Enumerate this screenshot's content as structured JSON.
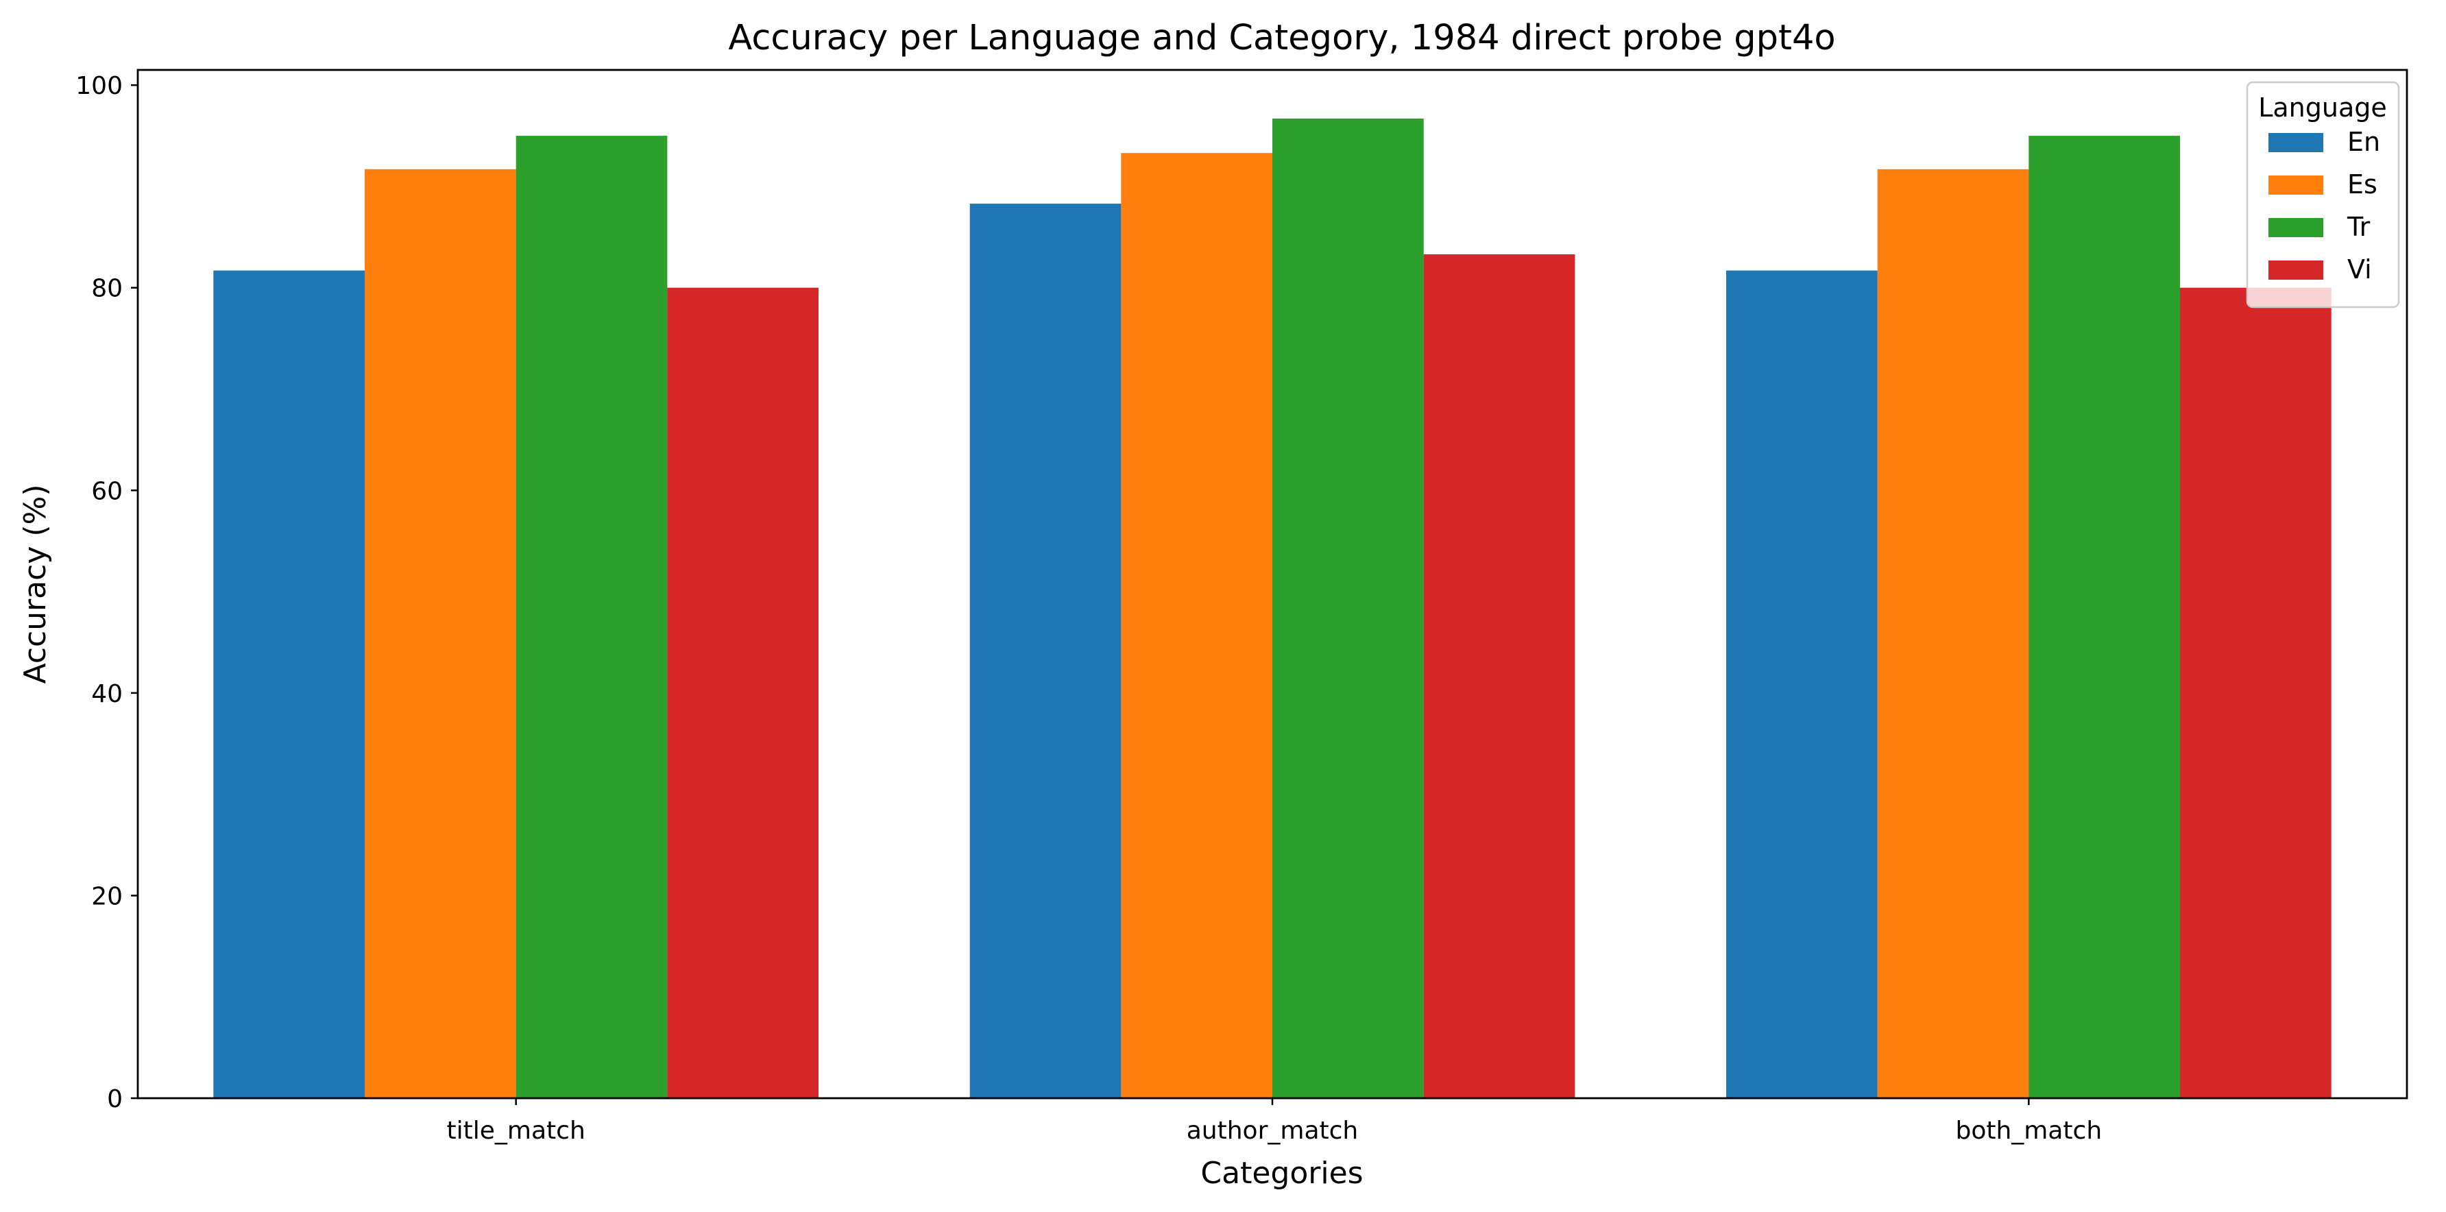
{
  "chart_data": {
    "type": "bar",
    "title": "Accuracy per Language and Category, 1984 direct probe gpt4o",
    "xlabel": "Categories",
    "ylabel": "Accuracy (%)",
    "categories": [
      "title_match",
      "author_match",
      "both_match"
    ],
    "series": [
      {
        "name": "En",
        "color": "#1f77b4",
        "values": [
          81.7,
          88.3,
          81.7
        ]
      },
      {
        "name": "Es",
        "color": "#ff7f0e",
        "values": [
          91.7,
          93.3,
          91.7
        ]
      },
      {
        "name": "Tr",
        "color": "#2ca02c",
        "values": [
          95.0,
          96.7,
          95.0
        ]
      },
      {
        "name": "Vi",
        "color": "#d62728",
        "values": [
          80.0,
          83.3,
          80.0
        ]
      }
    ],
    "ylim": [
      0,
      101.5
    ],
    "yticks": [
      0,
      20,
      40,
      60,
      80,
      100
    ],
    "grid": false,
    "legend": {
      "title": "Language",
      "placement": "top-right"
    }
  }
}
